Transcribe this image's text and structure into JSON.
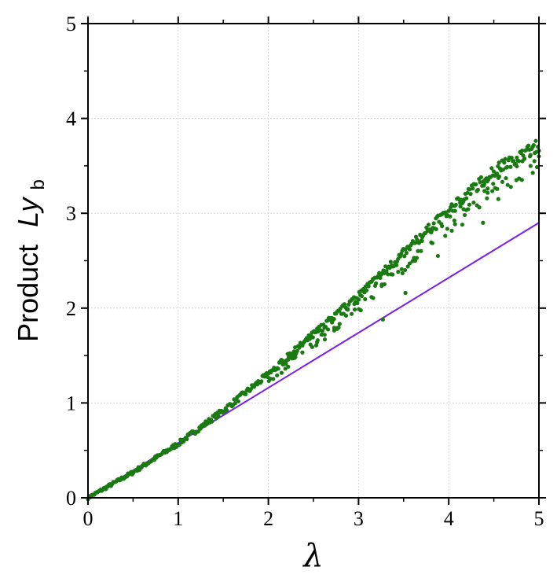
{
  "chart_data": {
    "type": "scatter",
    "xlabel": "λ",
    "ylabel": {
      "prefix": "Product",
      "symbol": "Ly",
      "subscript": "b"
    },
    "xlim": [
      0,
      5
    ],
    "ylim": [
      0,
      5
    ],
    "x_ticks": [
      "0",
      "1",
      "2",
      "3",
      "4",
      "5"
    ],
    "y_ticks": [
      "0",
      "1",
      "2",
      "3",
      "4",
      "5"
    ],
    "grid": true,
    "legend": "none",
    "colors": {
      "points": "#1a7a12",
      "line": "#7a1fe6",
      "grid": "#d9d9d9",
      "axes": "#000000"
    },
    "series": [
      {
        "type": "scatter",
        "trend": [
          [
            0,
            0
          ],
          [
            0.5,
            0.27
          ],
          [
            1,
            0.57
          ],
          [
            1.5,
            0.92
          ],
          [
            2,
            1.3
          ],
          [
            2.5,
            1.72
          ],
          [
            3,
            2.13
          ],
          [
            3.5,
            2.58
          ],
          [
            4,
            3.03
          ],
          [
            4.5,
            3.45
          ],
          [
            5,
            3.72
          ]
        ],
        "outliers": [
          [
            3.27,
            1.88
          ],
          [
            3.52,
            2.16
          ],
          [
            4.38,
            2.9
          ],
          [
            4.55,
            3.15
          ],
          [
            4.75,
            3.35
          ],
          [
            4.9,
            3.6
          ],
          [
            4.95,
            3.55
          ],
          [
            5.0,
            3.6
          ],
          [
            3.88,
            2.55
          ],
          [
            4.15,
            2.88
          ]
        ]
      },
      {
        "type": "line",
        "x": [
          0,
          5
        ],
        "y": [
          0,
          2.9
        ]
      }
    ]
  }
}
